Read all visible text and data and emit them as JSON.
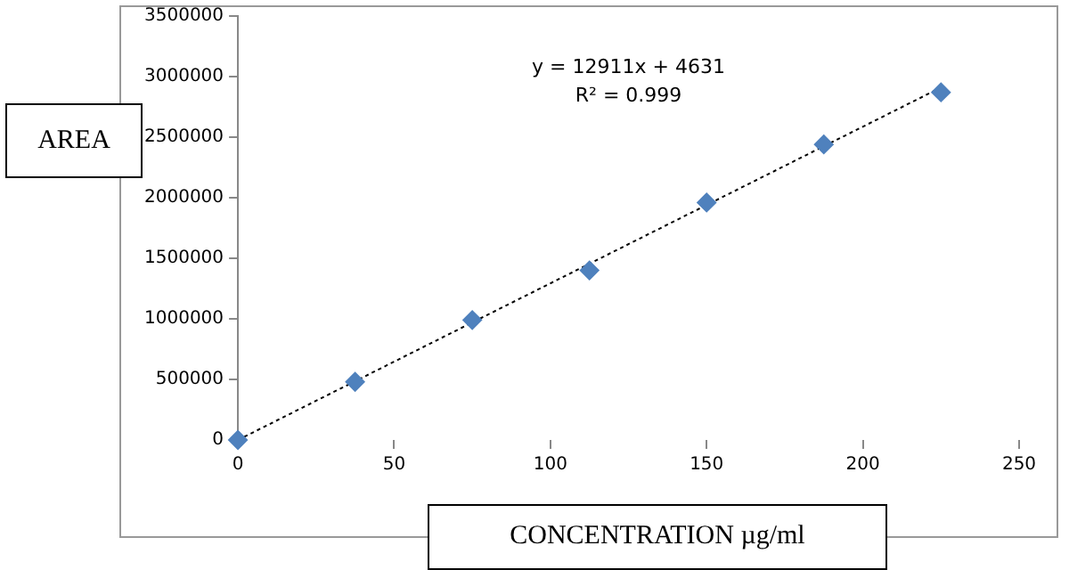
{
  "chart_data": {
    "type": "scatter",
    "xlabel": "CONCENTRATION µg/ml",
    "ylabel": "AREA",
    "x": [
      0,
      37.5,
      75,
      112.5,
      150,
      187.5,
      225
    ],
    "series": [
      {
        "type": "scatter",
        "color": "#4f81bd",
        "values": [
          0,
          480000,
          990000,
          1400000,
          1960000,
          2440000,
          2870000
        ],
        "marker": "diamond"
      },
      {
        "type": "line",
        "color": "#000000",
        "x": [
          0,
          225
        ],
        "values": [
          0,
          2910000
        ],
        "line_style": "dotted",
        "marker": "none"
      }
    ],
    "annotations": [
      "y = 12911x + 4631",
      "R² = 0.999"
    ],
    "xlim": [
      0,
      250
    ],
    "xticks": [
      0,
      50,
      100,
      150,
      200,
      250
    ],
    "ylim": [
      0,
      3500000
    ],
    "yticks": [
      0,
      500000,
      1000000,
      1500000,
      2000000,
      2500000,
      3000000,
      3500000
    ],
    "grid": false,
    "legend": false
  }
}
